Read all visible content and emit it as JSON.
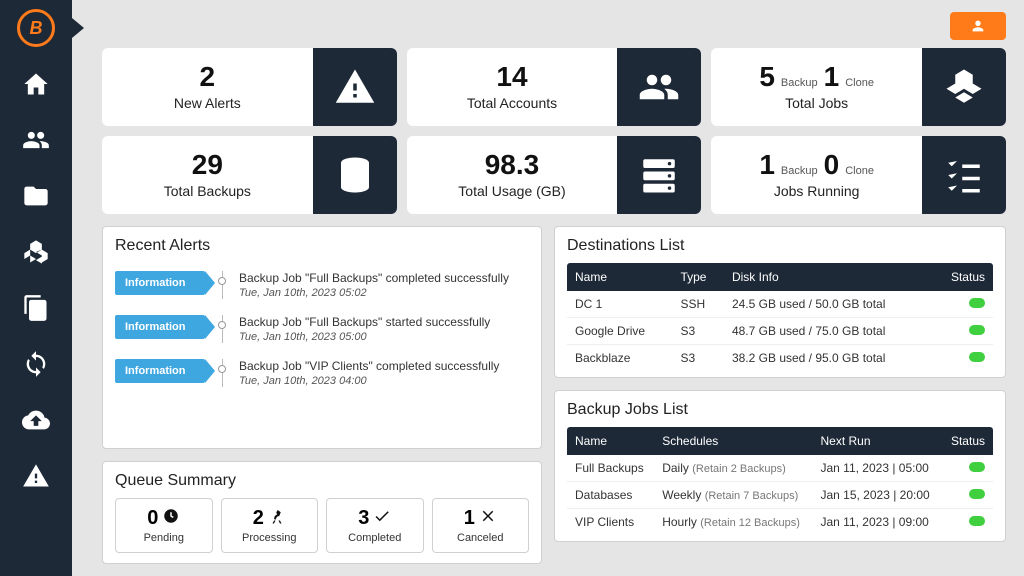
{
  "stats": {
    "alerts": {
      "value": "2",
      "label": "New Alerts"
    },
    "accounts": {
      "value": "14",
      "label": "Total Accounts"
    },
    "total_jobs": {
      "v1": "5",
      "l1": "Backup",
      "v2": "1",
      "l2": "Clone",
      "label": "Total Jobs"
    },
    "backups": {
      "value": "29",
      "label": "Total Backups"
    },
    "usage": {
      "value": "98.3",
      "label": "Total Usage (GB)"
    },
    "running": {
      "v1": "1",
      "l1": "Backup",
      "v2": "0",
      "l2": "Clone",
      "label": "Jobs Running"
    }
  },
  "recent_alerts": {
    "title": "Recent Alerts",
    "tag": "Information",
    "items": [
      {
        "msg": "Backup Job \"Full Backups\" completed successfully",
        "date": "Tue, Jan 10th, 2023 05:02"
      },
      {
        "msg": "Backup Job \"Full Backups\" started successfully",
        "date": "Tue, Jan 10th, 2023 05:00"
      },
      {
        "msg": "Backup Job \"VIP Clients\" completed successfully",
        "date": "Tue, Jan 10th, 2023 04:00"
      }
    ]
  },
  "queue": {
    "title": "Queue Summary",
    "cards": [
      {
        "n": "0",
        "label": "Pending"
      },
      {
        "n": "2",
        "label": "Processing"
      },
      {
        "n": "3",
        "label": "Completed"
      },
      {
        "n": "1",
        "label": "Canceled"
      }
    ]
  },
  "destinations": {
    "title": "Destinations List",
    "headers": {
      "name": "Name",
      "type": "Type",
      "disk": "Disk Info",
      "status": "Status"
    },
    "rows": [
      {
        "name": "DC 1",
        "type": "SSH",
        "disk": "24.5 GB used / 50.0 GB total"
      },
      {
        "name": "Google Drive",
        "type": "S3",
        "disk": "48.7 GB used / 75.0 GB total"
      },
      {
        "name": "Backblaze",
        "type": "S3",
        "disk": "38.2 GB used / 95.0 GB total"
      }
    ]
  },
  "jobs": {
    "title": "Backup Jobs List",
    "headers": {
      "name": "Name",
      "schedules": "Schedules",
      "next": "Next Run",
      "status": "Status"
    },
    "rows": [
      {
        "name": "Full Backups",
        "sched": "Daily",
        "retain": "(Retain 2 Backups)",
        "next": "Jan 11, 2023 | 05:00"
      },
      {
        "name": "Databases",
        "sched": "Weekly",
        "retain": "(Retain 7 Backups)",
        "next": "Jan 15, 2023 | 20:00"
      },
      {
        "name": "VIP Clients",
        "sched": "Hourly",
        "retain": "(Retain 12 Backups)",
        "next": "Jan 11, 2023 | 09:00"
      }
    ]
  }
}
